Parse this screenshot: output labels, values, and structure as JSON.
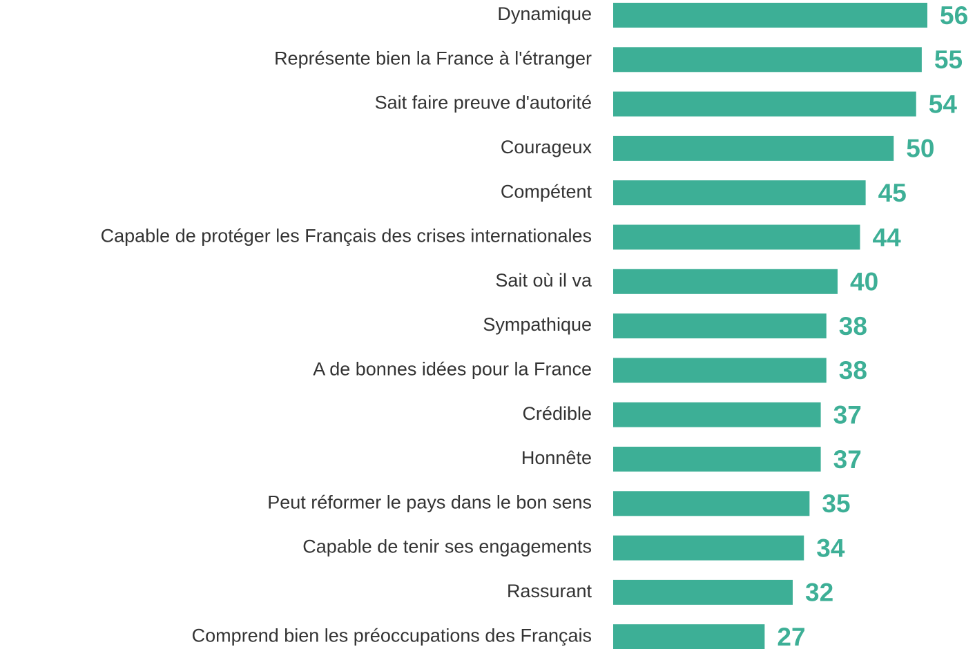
{
  "chart_data": {
    "type": "bar",
    "orientation": "horizontal",
    "categories": [
      "Dynamique",
      "Représente bien la France à l'étranger",
      "Sait faire preuve d'autorité",
      "Courageux",
      "Compétent",
      "Capable de protéger les Français des crises internationales",
      "Sait où il va",
      "Sympathique",
      "A de bonnes idées pour la France",
      "Crédible",
      "Honnête",
      "Peut réformer le pays dans le bon sens",
      "Capable de tenir ses engagements",
      "Rassurant",
      "Comprend bien les préoccupations des Français"
    ],
    "values": [
      56,
      55,
      54,
      50,
      45,
      44,
      40,
      38,
      38,
      37,
      37,
      35,
      34,
      32,
      27
    ],
    "color": "#3daf96"
  }
}
